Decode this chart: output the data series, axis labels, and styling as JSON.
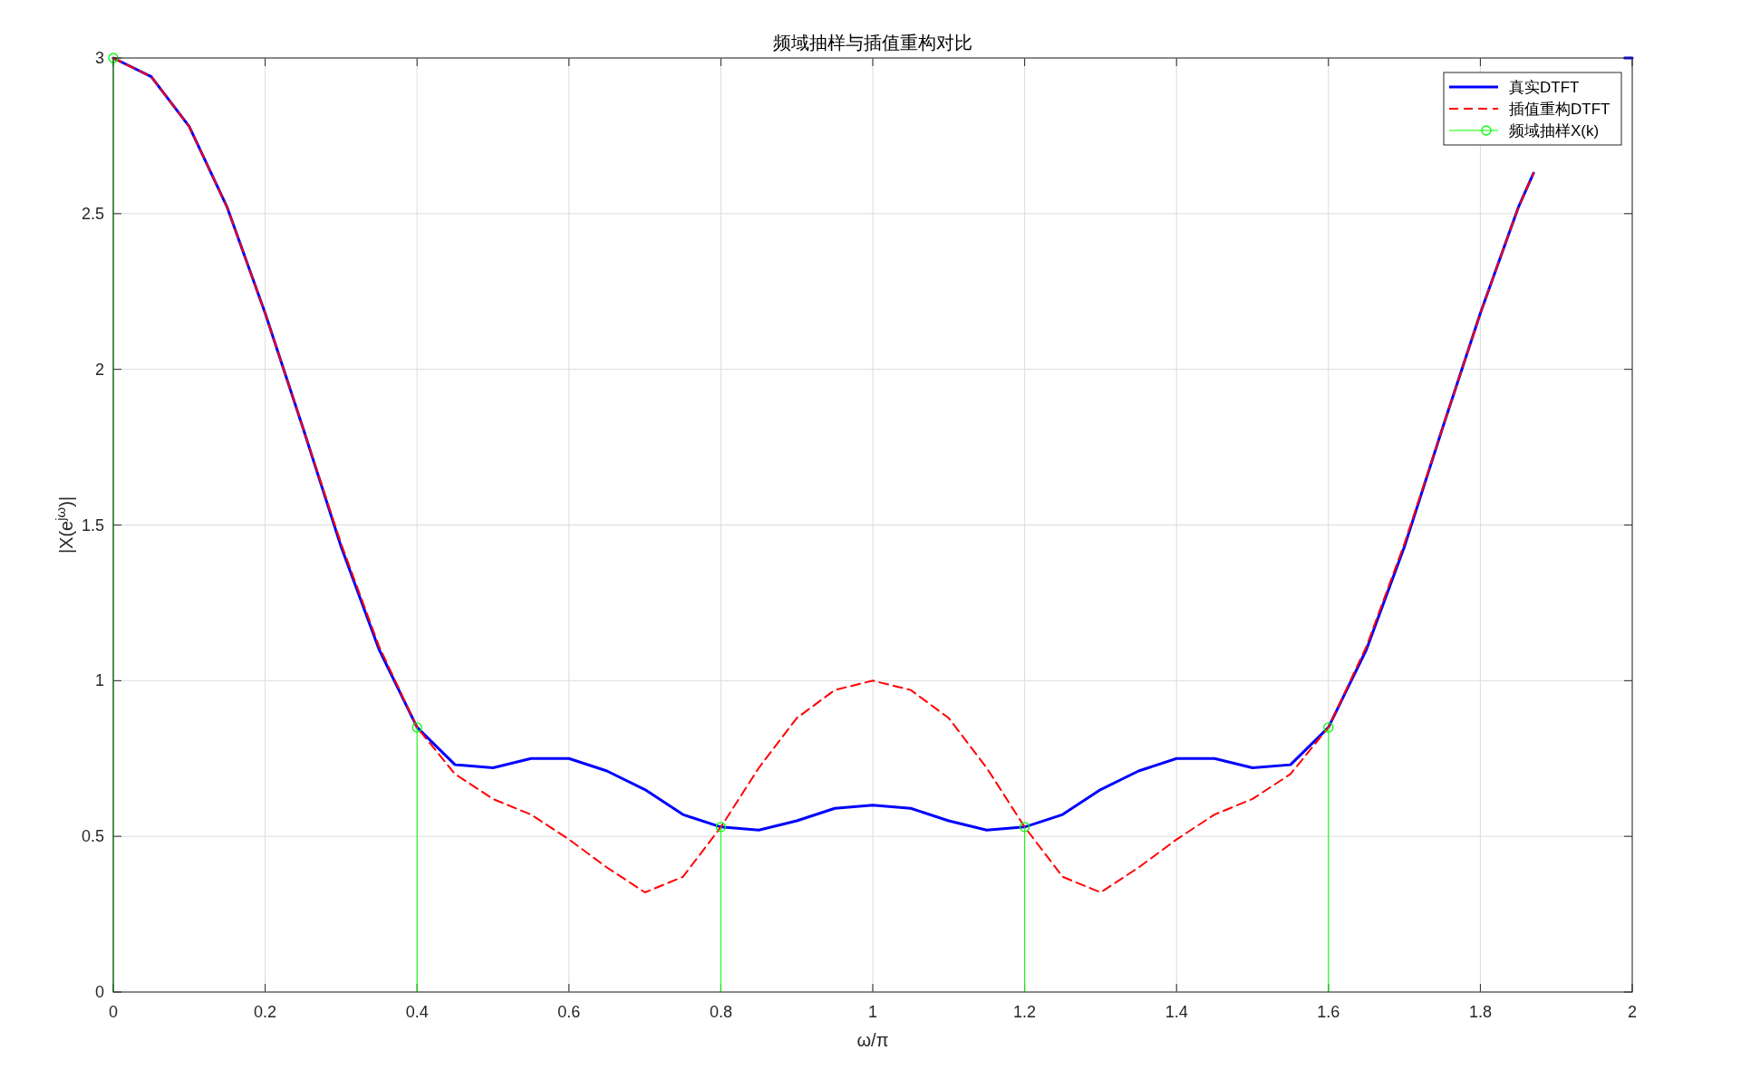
{
  "chart_data": {
    "type": "line",
    "title": "频域抽样与插值重构对比",
    "xlabel": "ω/π",
    "ylabel": "|X(e$^{jω}$)|",
    "xlim": [
      0,
      2
    ],
    "ylim": [
      0,
      3
    ],
    "xticks": [
      0,
      0.2,
      0.4,
      0.6,
      0.8,
      1,
      1.2,
      1.4,
      1.6,
      1.8,
      2
    ],
    "yticks": [
      0,
      0.5,
      1,
      1.5,
      2,
      2.5,
      3
    ],
    "grid": true,
    "legend": "top right",
    "series": [
      {
        "name": "真实DTFT",
        "line_style": "solid",
        "color": "#0000ff",
        "x": [
          0,
          0.05,
          0.1,
          0.15,
          0.2,
          0.25,
          0.3,
          0.35,
          0.4,
          0.45,
          0.5,
          0.55,
          0.6,
          0.65,
          0.7,
          0.75,
          0.8,
          0.85,
          0.9,
          0.95,
          1,
          1.05,
          1.1,
          1.15,
          1.2,
          1.25,
          1.3,
          1.35,
          1.4,
          1.45,
          1.5,
          1.55,
          1.6,
          1.65,
          1.7,
          1.75,
          1.8,
          1.85,
          1.87,
          1.93,
          1.99,
          2
        ],
        "values": [
          3,
          2.94,
          2.78,
          2.52,
          2.18,
          1.81,
          1.43,
          1.1,
          0.85,
          0.73,
          0.72,
          0.75,
          0.75,
          0.71,
          0.65,
          0.57,
          0.53,
          0.52,
          0.55,
          0.59,
          0.6,
          0.59,
          0.55,
          0.52,
          0.53,
          0.57,
          0.65,
          0.71,
          0.75,
          0.75,
          0.72,
          0.73,
          0.85,
          1.1,
          1.43,
          1.81,
          2.18,
          2.52,
          2.63,
          null,
          3,
          3
        ]
      },
      {
        "name": "插值重构DTFT",
        "line_style": "dashed",
        "color": "#ff0000",
        "x": [
          0,
          0.05,
          0.1,
          0.15,
          0.2,
          0.25,
          0.3,
          0.35,
          0.4,
          0.45,
          0.5,
          0.55,
          0.6,
          0.65,
          0.7,
          0.75,
          0.8,
          0.85,
          0.9,
          0.95,
          1,
          1.05,
          1.1,
          1.15,
          1.2,
          1.25,
          1.3,
          1.35,
          1.4,
          1.45,
          1.5,
          1.55,
          1.6,
          1.65,
          1.7,
          1.75,
          1.8,
          1.85,
          1.87
        ],
        "values": [
          3,
          2.94,
          2.78,
          2.52,
          2.18,
          1.81,
          1.44,
          1.11,
          0.85,
          0.7,
          0.62,
          0.57,
          0.49,
          0.4,
          0.32,
          0.37,
          0.53,
          0.72,
          0.88,
          0.97,
          1,
          0.97,
          0.88,
          0.72,
          0.53,
          0.37,
          0.32,
          0.4,
          0.49,
          0.57,
          0.62,
          0.7,
          0.85,
          1.11,
          1.44,
          1.81,
          2.18,
          2.52,
          2.63
        ]
      },
      {
        "name": "频域抽样X(k)",
        "type": "lollipop",
        "marker": "circle",
        "color": "#00ff00",
        "x": [
          0,
          0.4,
          0.8,
          1.2,
          1.6
        ],
        "values": [
          3,
          0.85,
          0.53,
          0.53,
          0.85
        ]
      }
    ]
  }
}
